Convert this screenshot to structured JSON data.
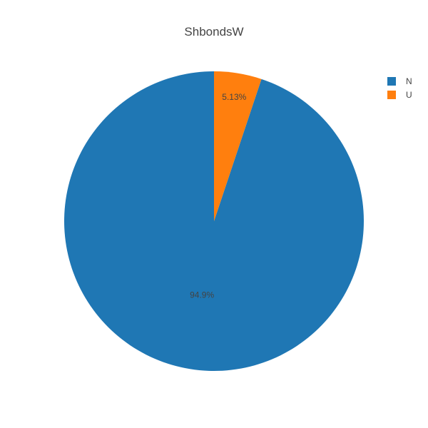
{
  "chart_data": {
    "type": "pie",
    "title": "ShbondsW",
    "categories": [
      "N",
      "U"
    ],
    "values": [
      94.87,
      5.13
    ],
    "value_labels": [
      "94.9%",
      "5.13%"
    ],
    "colors": [
      "#1f77b4",
      "#ff7f0e"
    ],
    "legend_placement": "top-right",
    "sort_direction": "counterclockwise-from-top"
  }
}
